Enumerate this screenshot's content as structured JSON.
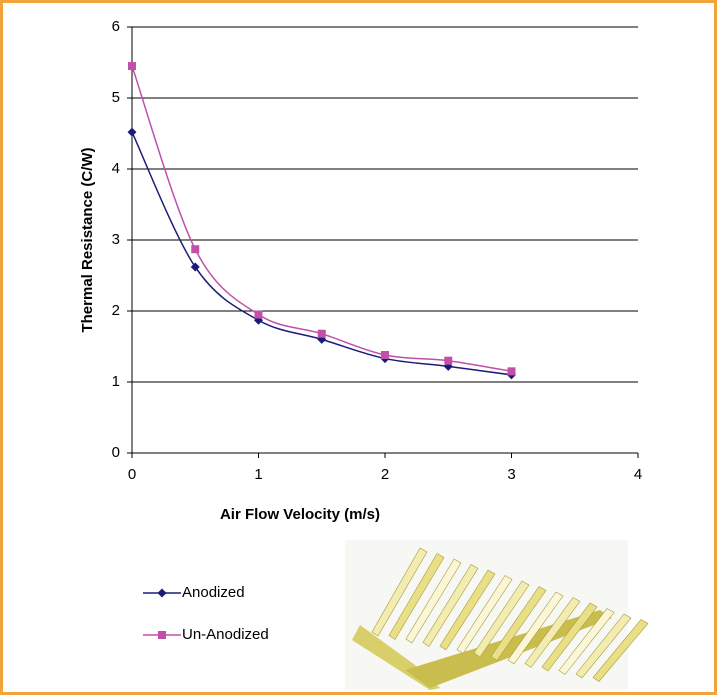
{
  "chart_data": {
    "type": "line",
    "xlabel": "Air Flow Velocity (m/s)",
    "ylabel": "Thermal Resistance (C/W)",
    "x": [
      0,
      0.5,
      1,
      1.5,
      2,
      2.5,
      3
    ],
    "series": [
      {
        "name": "Anodized",
        "color": "#1c1c78",
        "marker": "diamond",
        "values": [
          4.52,
          2.62,
          1.87,
          1.6,
          1.33,
          1.22,
          1.1
        ]
      },
      {
        "name": "Un-Anodized",
        "color": "#c050a8",
        "marker": "square",
        "values": [
          5.45,
          2.87,
          1.95,
          1.68,
          1.38,
          1.3,
          1.15
        ]
      }
    ],
    "xlim": [
      0,
      4
    ],
    "xticks": [
      0,
      1,
      2,
      3,
      4
    ],
    "ylim": [
      0,
      6
    ],
    "yticks": [
      0,
      1,
      2,
      3,
      4,
      5,
      6
    ],
    "grid": true,
    "smooth": true,
    "legend": "bottom-left"
  }
}
